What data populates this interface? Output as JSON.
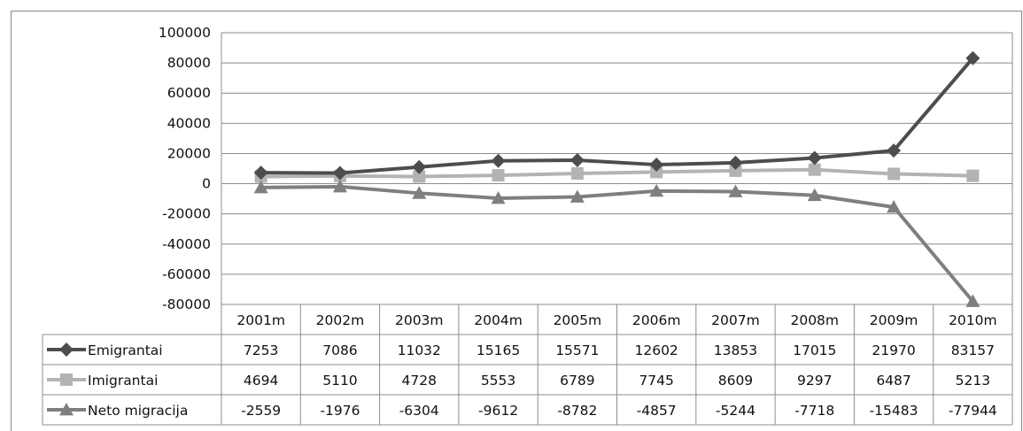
{
  "chart_data": {
    "type": "line",
    "categories": [
      "2001m",
      "2002m",
      "2003m",
      "2004m",
      "2005m",
      "2006m",
      "2007m",
      "2008m",
      "2009m",
      "2010m"
    ],
    "ylim": [
      -80000,
      100000
    ],
    "yticks": [
      100000,
      80000,
      60000,
      40000,
      20000,
      0,
      -20000,
      -40000,
      -60000,
      -80000
    ],
    "grid": true,
    "legend": "data-table",
    "series": [
      {
        "name": "Emigrantai",
        "marker": "diamond",
        "color": "#4d4d4d",
        "values": [
          7253,
          7086,
          11032,
          15165,
          15571,
          12602,
          13853,
          17015,
          21970,
          83157
        ]
      },
      {
        "name": "Imigrantai",
        "marker": "square",
        "color": "#b3b3b3",
        "values": [
          4694,
          5110,
          4728,
          5553,
          6789,
          7745,
          8609,
          9297,
          6487,
          5213
        ]
      },
      {
        "name": "Neto migracija",
        "marker": "triangle",
        "color": "#7f7f7f",
        "values": [
          -2559,
          -1976,
          -6304,
          -9612,
          -8782,
          -4857,
          -5244,
          -7718,
          -15483,
          -77944
        ]
      }
    ]
  }
}
